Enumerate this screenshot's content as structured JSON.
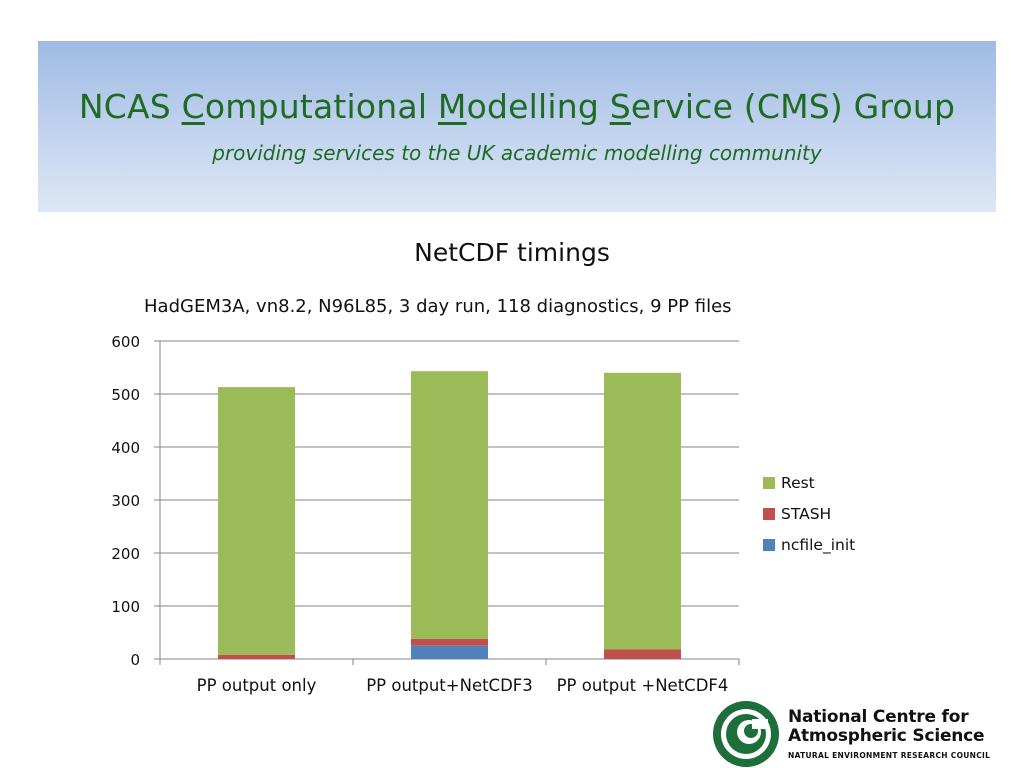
{
  "banner": {
    "title_parts": [
      "NCAS ",
      "C",
      "omputational ",
      "M",
      "odelling ",
      "S",
      "ervice (CMS) Group"
    ],
    "subtitle": "providing services to the UK academic modelling community"
  },
  "slide": {
    "title": "NetCDF timings",
    "caption": "HadGEM3A, vn8.2, N96L85, 3 day run, 118 diagnostics, 9 PP files"
  },
  "chart_data": {
    "type": "bar",
    "stacked": true,
    "categories": [
      "PP output only",
      "PP output+NetCDF3",
      "PP output +NetCDF4"
    ],
    "series": [
      {
        "name": "ncfile_init",
        "color": "#4f81bd",
        "values": [
          0,
          25,
          0
        ]
      },
      {
        "name": "STASH",
        "color": "#c0504d",
        "values": [
          8,
          13,
          18
        ]
      },
      {
        "name": "Rest",
        "color": "#9bbb59",
        "values": [
          505,
          505,
          522
        ]
      }
    ],
    "ylim": [
      0,
      600
    ],
    "yticks": [
      0,
      100,
      200,
      300,
      400,
      500,
      600
    ],
    "grid": true,
    "legend_position": "right",
    "legend_order": [
      "Rest",
      "STASH",
      "ncfile_init"
    ]
  },
  "logo": {
    "line1": "National Centre for",
    "line2": "Atmospheric Science",
    "line3": "NATURAL ENVIRONMENT RESEARCH COUNCIL"
  }
}
